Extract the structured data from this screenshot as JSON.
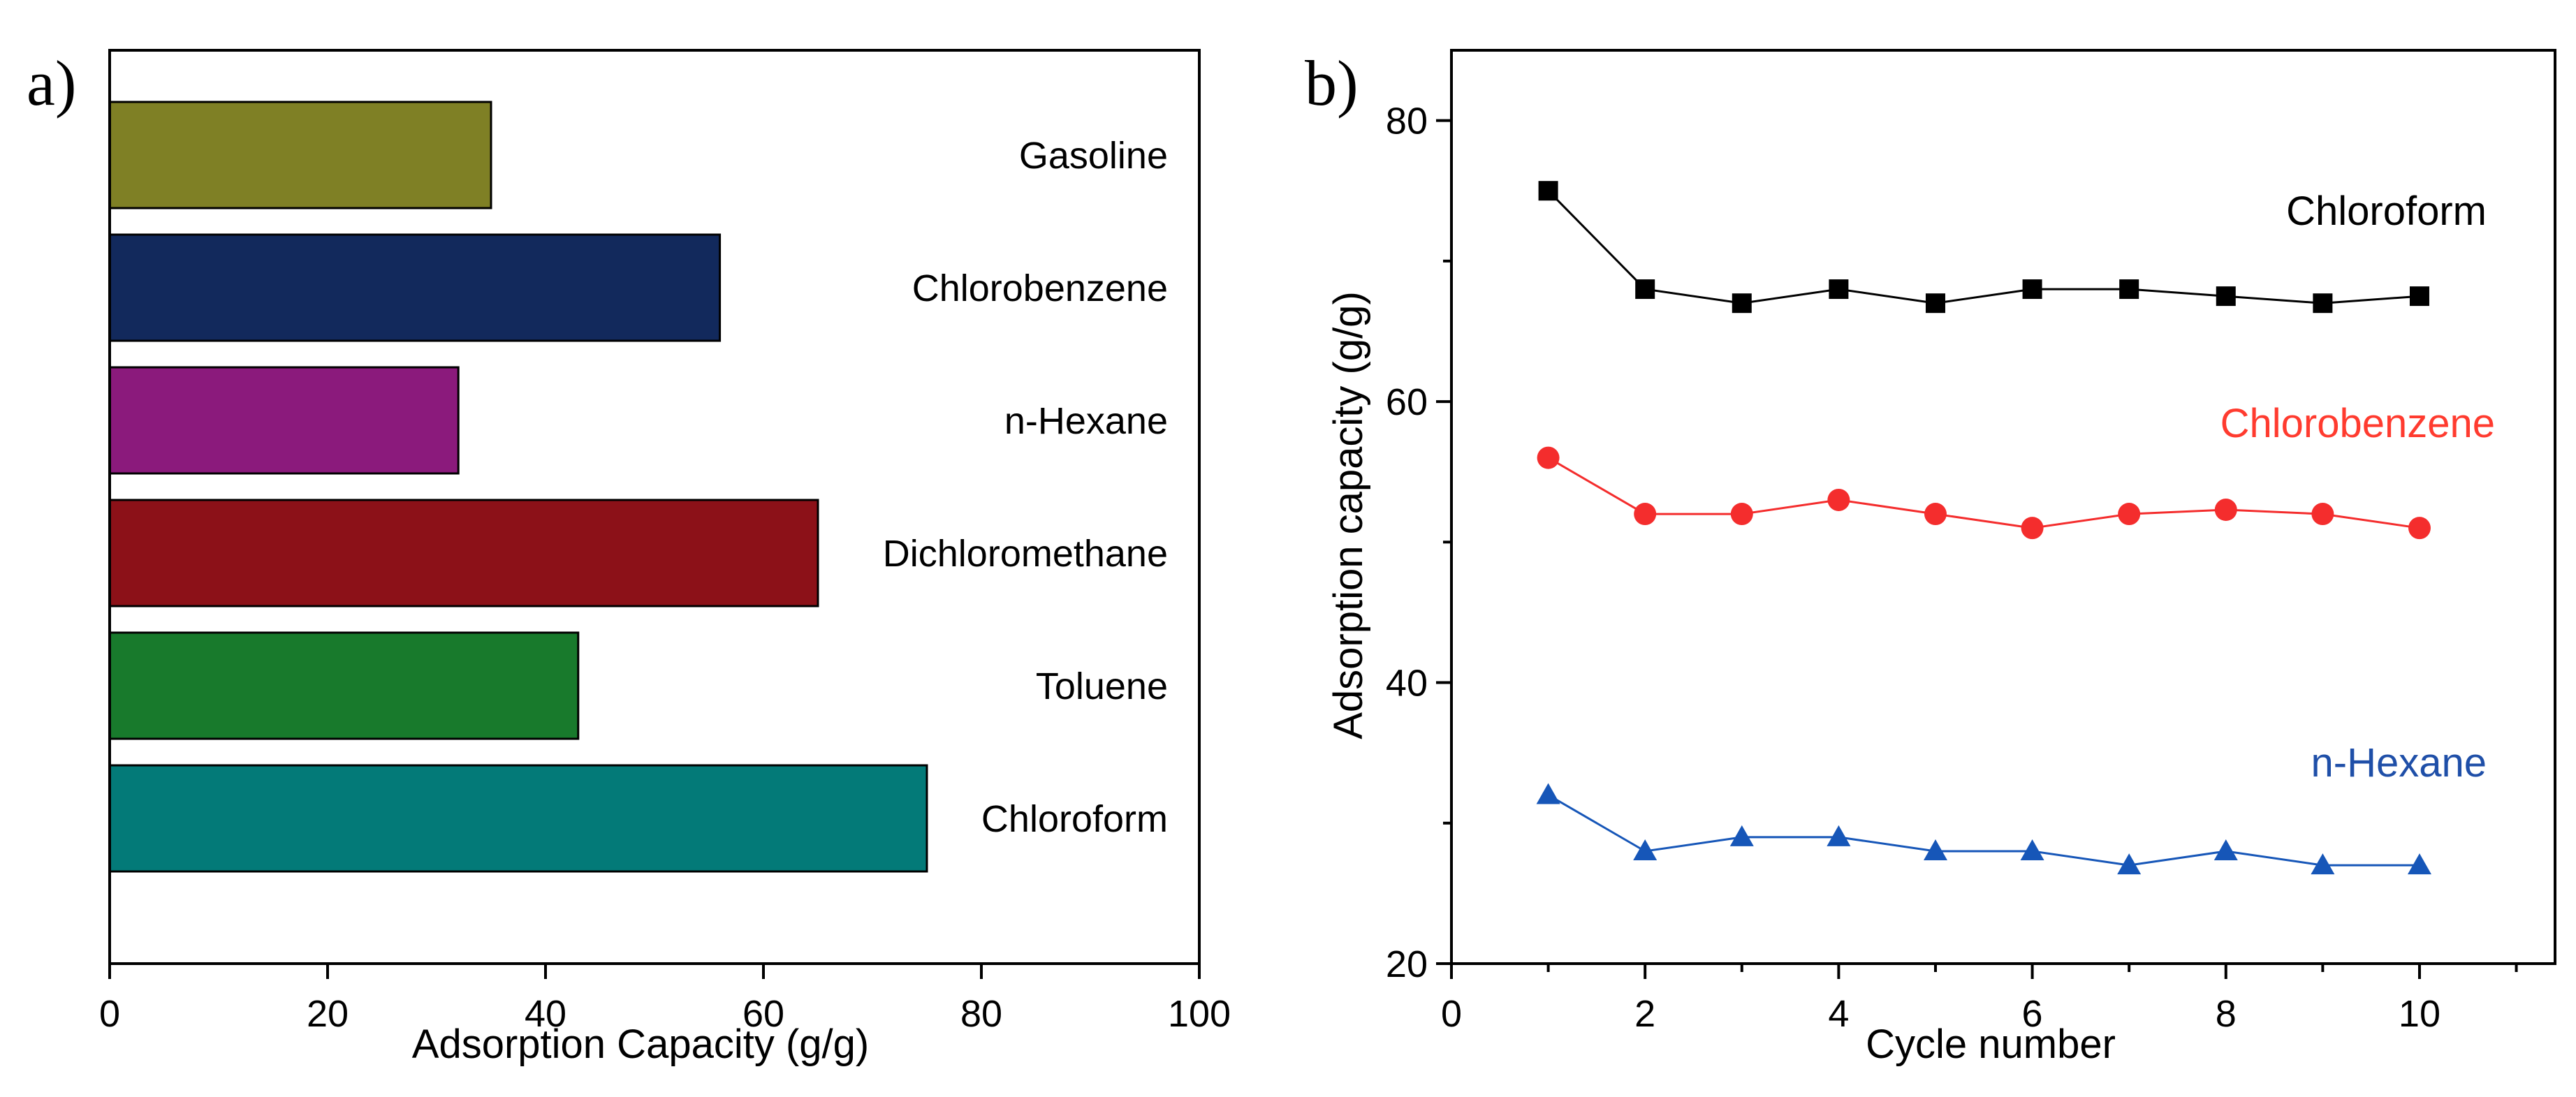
{
  "chart_data": [
    {
      "panel": "a)",
      "type": "bar",
      "orientation": "horizontal",
      "xlabel": "Adsorption Capacity (g/g)",
      "ylabel": "",
      "xlim": [
        0,
        100
      ],
      "xticks": [
        "0",
        "20",
        "40",
        "60",
        "80",
        "100"
      ],
      "categories": [
        "Gasoline",
        "Chlorobenzene",
        "n-Hexane",
        "Dichloromethane",
        "Toluene",
        "Chloroform"
      ],
      "values": [
        35,
        56,
        32,
        65,
        43,
        75
      ],
      "colors": [
        "#7f8025",
        "#12295c",
        "#8b1a7c",
        "#8c1118",
        "#187a2c",
        "#037a78"
      ],
      "grid": false,
      "legend": "none"
    },
    {
      "panel": "b)",
      "type": "line",
      "xlabel": "Cycle number",
      "ylabel": "Adsorption capacity (g/g)",
      "xlim": [
        0,
        11.4
      ],
      "ylim": [
        20,
        85
      ],
      "xticks": [
        "0",
        "2",
        "4",
        "6",
        "8",
        "10"
      ],
      "yticks": [
        "20",
        "40",
        "60",
        "80"
      ],
      "x": [
        1,
        2,
        3,
        4,
        5,
        6,
        7,
        8,
        9,
        10
      ],
      "series": [
        {
          "name": "Chloroform",
          "marker": "square",
          "color": "#000000",
          "label_color": "#000000",
          "values": [
            75,
            68,
            67,
            68,
            67,
            68,
            68,
            67.5,
            67,
            67.5
          ]
        },
        {
          "name": "Chlorobenzene",
          "marker": "circle",
          "color": "#f42d2d",
          "label_color": "#ff3b2f",
          "values": [
            56,
            52,
            52,
            53,
            52,
            51,
            52,
            52.3,
            52,
            51
          ]
        },
        {
          "name": "n-Hexane",
          "marker": "triangle",
          "color": "#1656b8",
          "label_color": "#1f4fa8",
          "values": [
            32,
            28,
            29,
            29,
            28,
            28,
            27,
            28,
            27,
            27
          ]
        }
      ],
      "grid": false,
      "legend": "inline labels above each series"
    }
  ]
}
